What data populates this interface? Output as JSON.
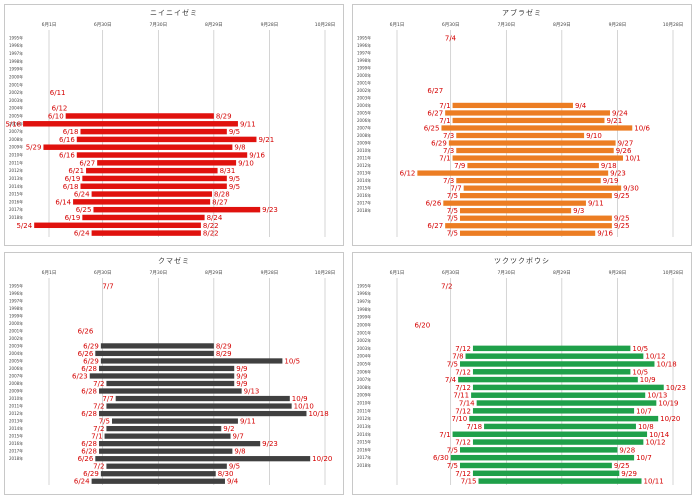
{
  "chart_data": [
    {
      "type": "bar",
      "title": "ニイニイゼミ",
      "bar_color": "#e0120e",
      "label_color": "#d40000",
      "x_ticks": [
        "6月1日",
        "6月30日",
        "7月30日",
        "8月29日",
        "9月28日",
        "10月28日"
      ],
      "years": [
        "1995年",
        "1996年",
        "1997年",
        "1998年",
        "1999年",
        "2000年",
        "2001年",
        "2002年",
        "2003年",
        "2004年",
        "2005年",
        "2006年",
        "2007年",
        "2008年",
        "2009年",
        "2010年",
        "2011年",
        "2012年",
        "2013年",
        "2014年",
        "2015年",
        "2016年",
        "2017年",
        "2018年"
      ],
      "first": [
        null,
        null,
        null,
        null,
        null,
        null,
        null,
        "6/11",
        null,
        "6/12",
        "6/10",
        "5/18",
        "6/18",
        "6/16",
        "5/29",
        "6/16",
        "6/27",
        "6/21",
        "6/19",
        "6/18",
        "6/24",
        "6/14",
        "6/25",
        "6/19"
      ],
      "last": [
        null,
        null,
        null,
        null,
        null,
        null,
        null,
        null,
        null,
        null,
        "8/29",
        "9/11",
        "9/5",
        "9/21",
        "9/8",
        "9/16",
        "9/10",
        "8/31",
        "9/5",
        "9/5",
        "8/28",
        "8/27",
        "9/23",
        "8/24"
      ],
      "extra_rows": [
        {
          "first": "5/24",
          "last": "8/22"
        },
        {
          "first": "6/24",
          "last": "8/22"
        }
      ]
    },
    {
      "type": "bar",
      "title": "アブラゼミ",
      "bar_color": "#ec7d23",
      "label_color": "#d40000",
      "x_ticks": [
        "6月1日",
        "6月30日",
        "7月30日",
        "8月29日",
        "9月28日",
        "10月28日"
      ],
      "years": [
        "1995年",
        "1996年",
        "1997年",
        "1998年",
        "1999年",
        "2000年",
        "2001年",
        "2002年",
        "2003年",
        "2004年",
        "2005年",
        "2006年",
        "2007年",
        "2008年",
        "2009年",
        "2010年",
        "2011年",
        "2012年",
        "2013年",
        "2014年",
        "2015年",
        "2016年",
        "2017年",
        "2018年"
      ],
      "first": [
        "7/4",
        null,
        null,
        null,
        null,
        null,
        null,
        "6/27",
        null,
        "7/1",
        "6/27",
        "7/1",
        "6/25",
        "7/3",
        "6/29",
        "7/3",
        "7/1",
        "7/9",
        "6/12",
        "7/3",
        "7/7",
        "7/5",
        "6/26",
        "7/5"
      ],
      "last": [
        null,
        null,
        null,
        null,
        null,
        null,
        null,
        null,
        null,
        "9/4",
        "9/24",
        "9/21",
        "10/6",
        "9/10",
        "9/27",
        "9/26",
        "10/1",
        "9/18",
        "9/23",
        "9/19",
        "9/30",
        "9/25",
        "9/11",
        "9/3"
      ],
      "extra_rows": [
        {
          "first": "7/5",
          "last": "9/25"
        },
        {
          "first": "6/27",
          "last": "9/25"
        },
        {
          "first": "7/5",
          "last": "9/16"
        }
      ]
    },
    {
      "type": "bar",
      "title": "クマゼミ",
      "bar_color": "#404040",
      "label_color": "#d40000",
      "x_ticks": [
        "6月1日",
        "6月30日",
        "7月30日",
        "8月29日",
        "9月28日",
        "10月28日"
      ],
      "years": [
        "1995年",
        "1996年",
        "1997年",
        "1998年",
        "1999年",
        "2000年",
        "2001年",
        "2002年",
        "2003年",
        "2004年",
        "2005年",
        "2006年",
        "2007年",
        "2008年",
        "2009年",
        "2010年",
        "2011年",
        "2012年",
        "2013年",
        "2014年",
        "2015年",
        "2016年",
        "2017年",
        "2018年"
      ],
      "first": [
        "7/7",
        null,
        null,
        null,
        null,
        null,
        "6/26",
        null,
        "6/29",
        "6/26",
        "6/29",
        "6/28",
        "6/23",
        "7/2",
        "6/28",
        "7/7",
        "7/2",
        "6/28",
        "7/5",
        "7/2",
        "7/1",
        "6/28",
        "6/28",
        "6/26"
      ],
      "last": [
        null,
        null,
        null,
        null,
        null,
        null,
        null,
        null,
        "8/29",
        "8/29",
        "10/5",
        "9/9",
        "9/9",
        "9/9",
        "9/13",
        "10/9",
        "10/10",
        "10/18",
        "9/11",
        "9/2",
        "9/7",
        "9/23",
        "9/8",
        "10/20"
      ],
      "extra_rows": [
        {
          "first": "7/2",
          "last": "9/5"
        },
        {
          "first": "6/29",
          "last": "8/30"
        },
        {
          "first": "6/24",
          "last": "9/4"
        }
      ]
    },
    {
      "type": "bar",
      "title": "ツクツクボウシ",
      "bar_color": "#1fa04a",
      "label_color": "#d40000",
      "x_ticks": [
        "6月1日",
        "6月30日",
        "7月30日",
        "8月29日",
        "9月28日",
        "10月28日"
      ],
      "years": [
        "1995年",
        "1996年",
        "1997年",
        "1998年",
        "1999年",
        "2000年",
        "2001年",
        "2002年",
        "2003年",
        "2004年",
        "2005年",
        "2006年",
        "2007年",
        "2008年",
        "2009年",
        "2010年",
        "2011年",
        "2012年",
        "2013年",
        "2014年",
        "2015年",
        "2016年",
        "2017年",
        "2018年"
      ],
      "first": [
        "7/2",
        null,
        null,
        null,
        null,
        "6/20",
        null,
        null,
        "7/12",
        "7/8",
        "7/5",
        "7/12",
        "7/4",
        "7/12",
        "7/11",
        "7/14",
        "7/12",
        "7/10",
        "7/18",
        "7/1",
        "7/12",
        "7/5",
        "6/30",
        "7/5"
      ],
      "last": [
        null,
        null,
        null,
        null,
        null,
        null,
        null,
        null,
        "10/5",
        "10/12",
        "10/18",
        "10/5",
        "10/9",
        "10/23",
        "10/13",
        "10/19",
        "10/7",
        "10/20",
        "10/8",
        "10/14",
        "10/12",
        "9/28",
        "10/7",
        "9/25"
      ],
      "extra_rows": [
        {
          "first": "7/12",
          "last": "9/29"
        },
        {
          "first": "7/15",
          "last": "10/11"
        }
      ]
    }
  ]
}
